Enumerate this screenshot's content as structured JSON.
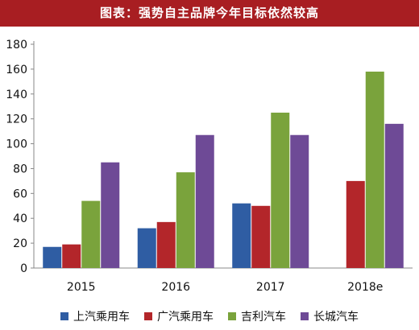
{
  "header": {
    "title": "图表：强势自主品牌今年目标依然较高"
  },
  "colors": {
    "header_bg": "#a81e22",
    "header_text": "#ffffff",
    "series": [
      "#2f5da3",
      "#b3262a",
      "#7aa33c",
      "#6e4a96"
    ]
  },
  "chart_data": {
    "type": "bar",
    "title": "图表：强势自主品牌今年目标依然较高",
    "xlabel": "",
    "ylabel": "",
    "categories": [
      "2015",
      "2016",
      "2017",
      "2018e"
    ],
    "ylim": [
      0,
      180
    ],
    "yticks": [
      "0",
      "20",
      "40",
      "60",
      "80",
      "100",
      "120",
      "140",
      "160",
      "180"
    ],
    "grid": false,
    "legend_position": "bottom",
    "series": [
      {
        "name": "上汽乘用车",
        "color": "#2f5da3",
        "values": [
          17,
          32,
          52,
          null
        ]
      },
      {
        "name": "广汽乘用车",
        "color": "#b3262a",
        "values": [
          19,
          37,
          50,
          70
        ]
      },
      {
        "name": "吉利汽车",
        "color": "#7aa33c",
        "values": [
          54,
          77,
          125,
          158
        ]
      },
      {
        "name": "长城汽车",
        "color": "#6e4a96",
        "values": [
          85,
          107,
          107,
          116
        ]
      }
    ]
  }
}
